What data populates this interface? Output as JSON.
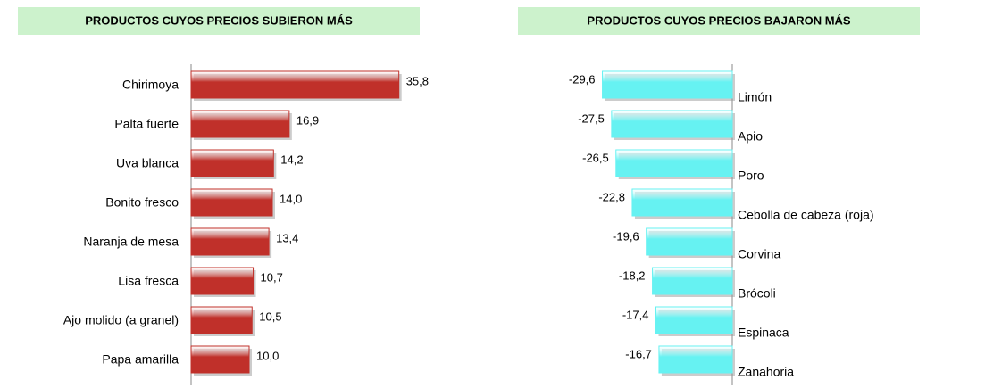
{
  "chart_data": [
    {
      "type": "bar",
      "orientation": "horizontal",
      "title": "PRODUCTOS CUYOS PRECIOS SUBIERON MÁS",
      "categories": [
        "Chirimoya",
        "Palta fuerte",
        "Uva blanca",
        "Bonito fresco",
        "Naranja de mesa",
        "Lisa fresca",
        "Ajo molido (a granel)",
        "Papa amarilla"
      ],
      "values": [
        35.8,
        16.9,
        14.2,
        14.0,
        13.4,
        10.7,
        10.5,
        10.0
      ],
      "value_labels": [
        "35,8",
        "16,9",
        "14,2",
        "14,0",
        "13,4",
        "10,7",
        "10,5",
        "10,0"
      ],
      "color": "#c0302a",
      "xlim": [
        0,
        40
      ]
    },
    {
      "type": "bar",
      "orientation": "horizontal",
      "title": "PRODUCTOS CUYOS PRECIOS BAJARON MÁS",
      "categories": [
        "Limón",
        "Apio",
        "Poro",
        "Cebolla de cabeza (roja)",
        "Corvina",
        "Brócoli",
        "Espinaca",
        "Zanahoria"
      ],
      "values": [
        -29.6,
        -27.5,
        -26.5,
        -22.8,
        -19.6,
        -18.2,
        -17.4,
        -16.7
      ],
      "value_labels": [
        "-29,6",
        "-27,5",
        "-26,5",
        "-22,8",
        "-19,6",
        "-18,2",
        "-17,4",
        "-16,7"
      ],
      "color": "#66f2f2",
      "xlim": [
        -35,
        0
      ]
    }
  ]
}
